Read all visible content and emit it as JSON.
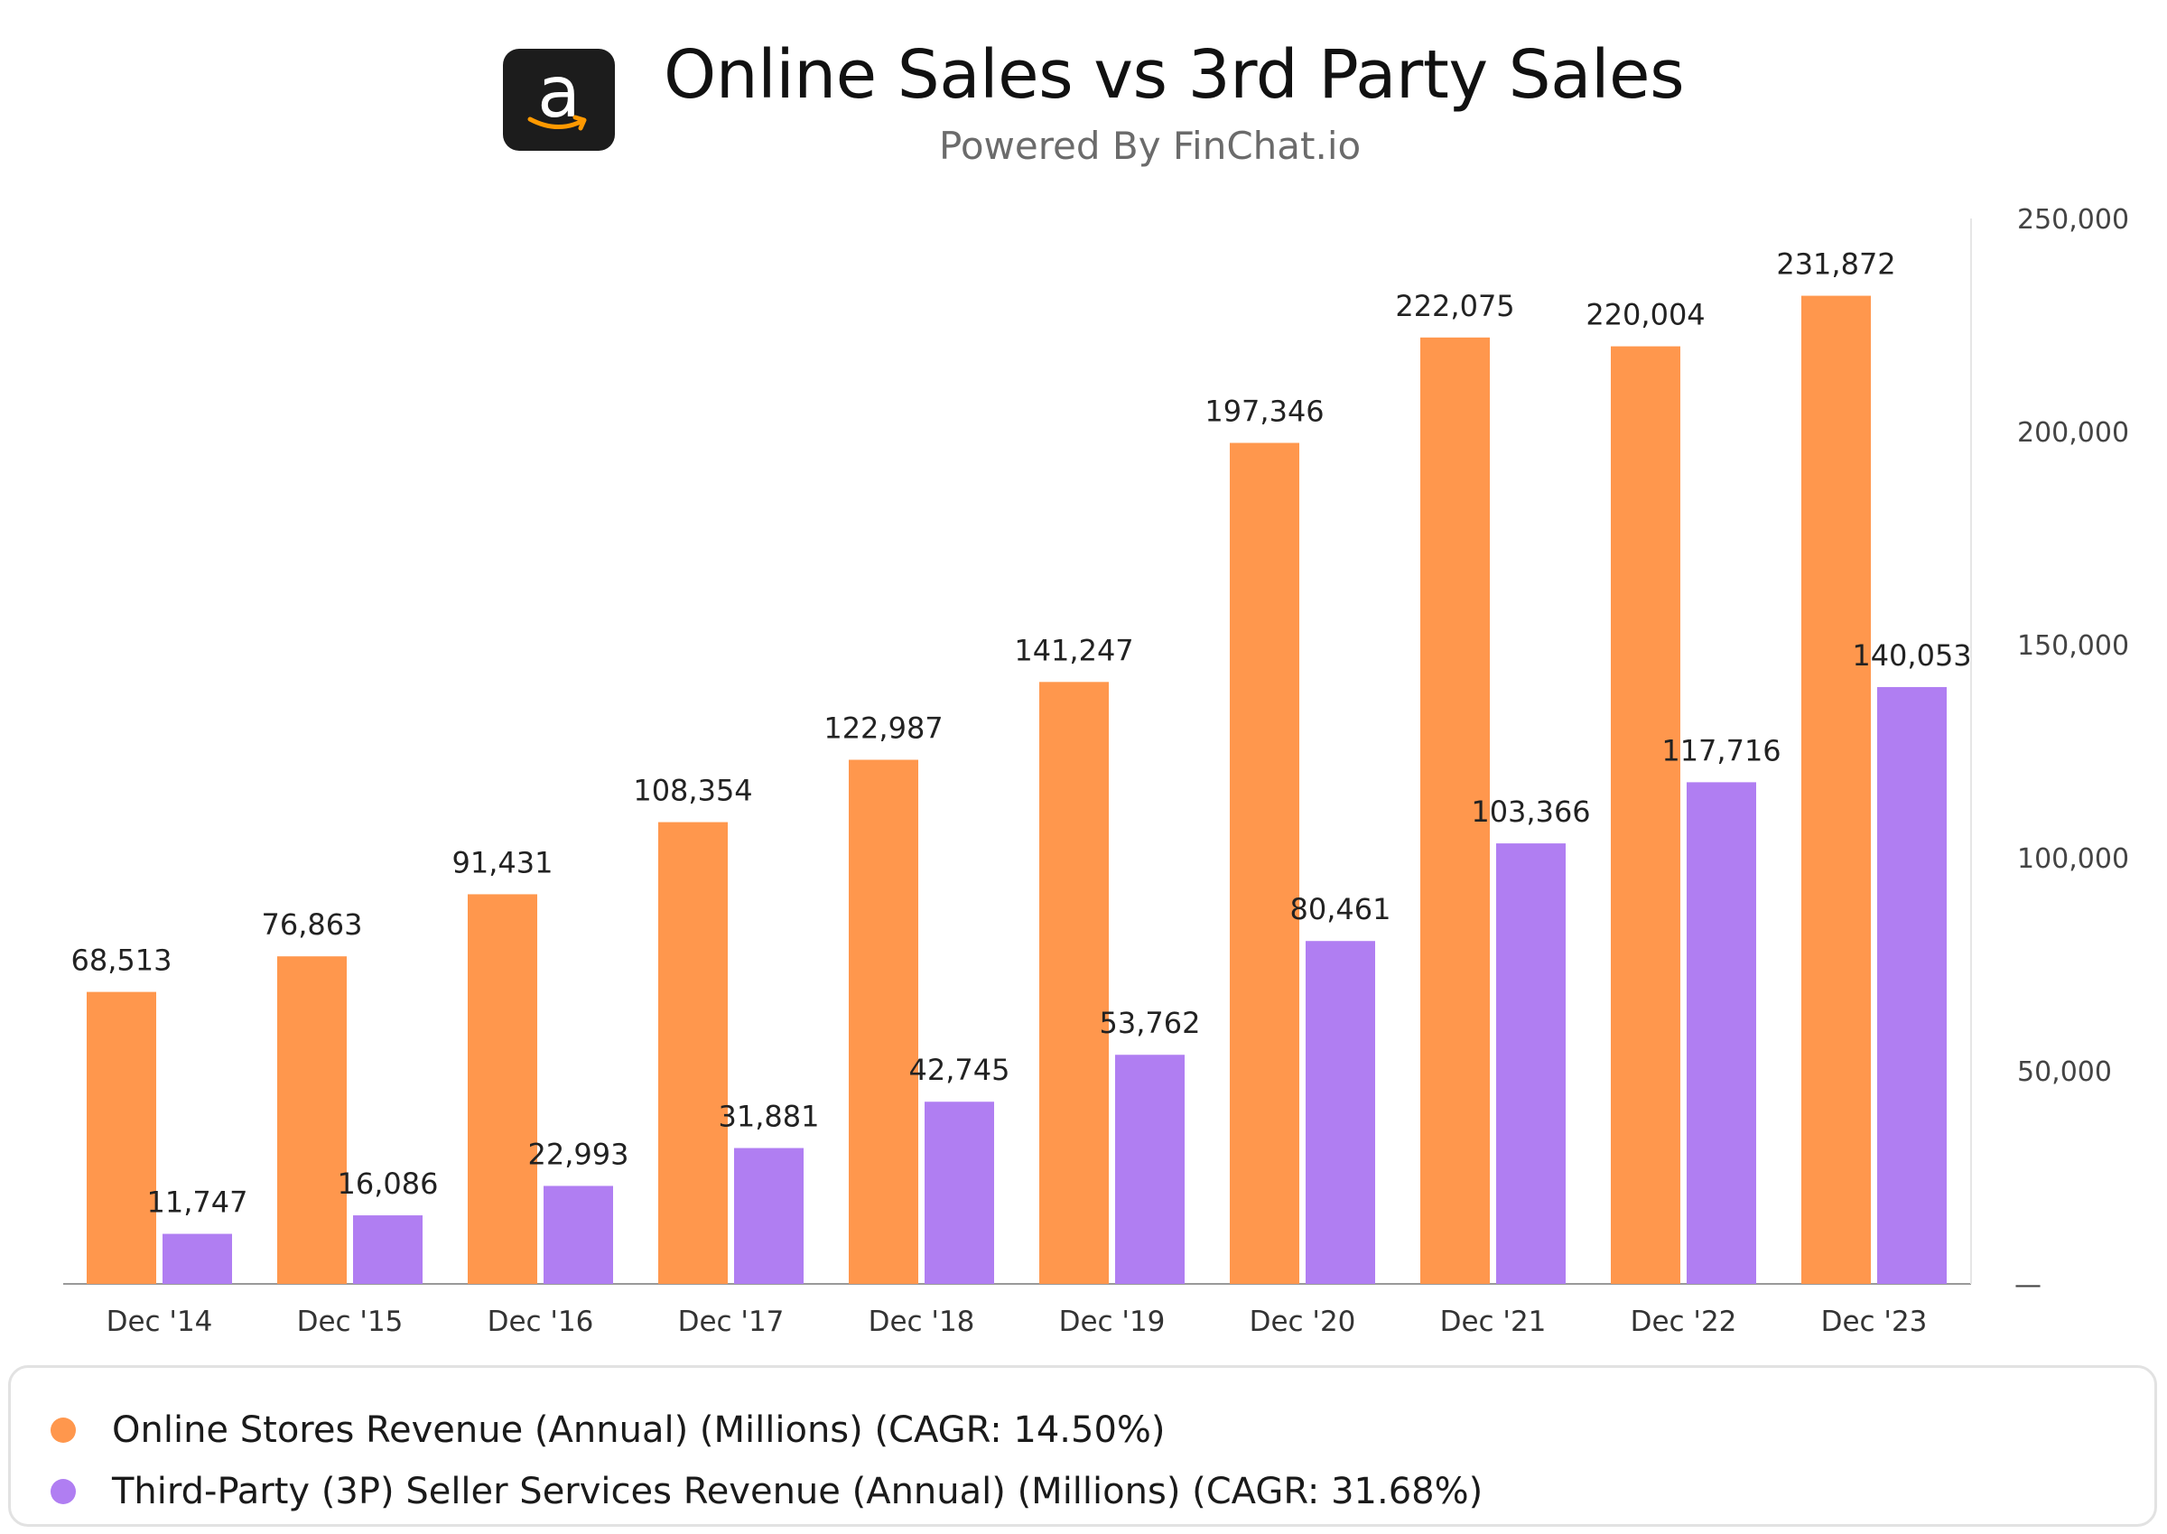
{
  "header": {
    "title": "Online Sales vs 3rd Party Sales",
    "subtitle": "Powered By FinChat.io",
    "logo_letter": "a",
    "logo_icon": "amazon-logo-icon"
  },
  "chart_data": {
    "type": "bar",
    "categories": [
      "Dec '14",
      "Dec '15",
      "Dec '16",
      "Dec '17",
      "Dec '18",
      "Dec '19",
      "Dec '20",
      "Dec '21",
      "Dec '22",
      "Dec '23"
    ],
    "series": [
      {
        "name": "Online Stores Revenue (Annual) (Millions) (CAGR: 14.50%)",
        "color": "#ff974d",
        "values": [
          68513,
          76863,
          91431,
          108354,
          122987,
          141247,
          197346,
          222075,
          220004,
          231872
        ],
        "labels": [
          "68,513",
          "76,863",
          "91,431",
          "108,354",
          "122,987",
          "141,247",
          "197,346",
          "222,075",
          "220,004",
          "231,872"
        ]
      },
      {
        "name": "Third-Party (3P) Seller Services Revenue (Annual) (Millions) (CAGR: 31.68%)",
        "color": "#b07ef2",
        "values": [
          11747,
          16086,
          22993,
          31881,
          42745,
          53762,
          80461,
          103366,
          117716,
          140053
        ],
        "labels": [
          "11,747",
          "16,086",
          "22,993",
          "31,881",
          "42,745",
          "53,762",
          "80,461",
          "103,366",
          "117,716",
          "140,053"
        ]
      }
    ],
    "y_ticks": [
      0,
      50000,
      100000,
      150000,
      200000,
      250000
    ],
    "y_tick_labels": [
      "—",
      "50,000",
      "100,000",
      "150,000",
      "200,000",
      "250,000"
    ],
    "ylim": [
      0,
      250000
    ],
    "y_axis_side": "right",
    "grid": false,
    "legend_position": "bottom"
  }
}
